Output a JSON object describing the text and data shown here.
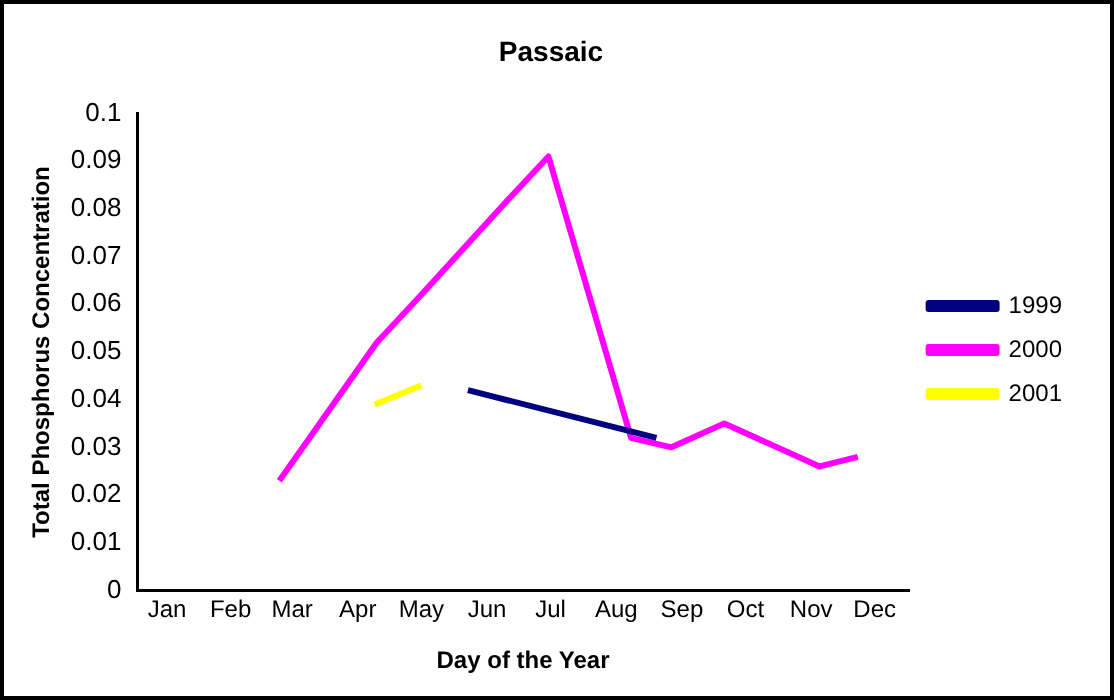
{
  "chart_data": {
    "type": "line",
    "title": "Passaic",
    "xlabel": "Day of the Year",
    "ylabel": "Total Phosphorus Concentration",
    "xlim": [
      "--01-01",
      "--12-31"
    ],
    "xticks": [
      {
        "value": "--01-15",
        "label": "Jan"
      },
      {
        "value": "--02-14",
        "label": "Feb"
      },
      {
        "value": "--03-15",
        "label": "Mar"
      },
      {
        "value": "--04-15",
        "label": "Apr"
      },
      {
        "value": "--05-15",
        "label": "May"
      },
      {
        "value": "--06-15",
        "label": "Jun"
      },
      {
        "value": "--07-15",
        "label": "Jul"
      },
      {
        "value": "--08-15",
        "label": "Aug"
      },
      {
        "value": "--09-15",
        "label": "Sep"
      },
      {
        "value": "--10-15",
        "label": "Oct"
      },
      {
        "value": "--11-15",
        "label": "Nov"
      },
      {
        "value": "--12-15",
        "label": "Dec"
      }
    ],
    "ylim": [
      0,
      0.1
    ],
    "yticks": [
      0,
      0.01,
      0.02,
      0.03,
      0.04,
      0.05,
      0.06,
      0.07,
      0.08,
      0.09,
      0.1
    ],
    "grid": false,
    "legend": "right",
    "marker": "none",
    "line_style": "solid",
    "series": [
      {
        "name": "1999",
        "color": "#000080",
        "x": [
          "--06-06",
          "--09-03"
        ],
        "values": [
          0.042,
          0.032
        ]
      },
      {
        "name": "2000",
        "color": "#ff00ff",
        "x": [
          "--03-09",
          "--04-24",
          "--05-15",
          "--06-23",
          "--07-14",
          "--08-22",
          "--09-10",
          "--10-05",
          "--11-19",
          "--12-07"
        ],
        "values": [
          0.023,
          0.052,
          0.062,
          0.081,
          0.091,
          0.032,
          0.03,
          0.035,
          0.026,
          0.028
        ]
      },
      {
        "name": "2001",
        "color": "#ffff00",
        "x": [
          "--04-23",
          "--05-15"
        ],
        "values": [
          0.039,
          0.043
        ]
      }
    ]
  }
}
